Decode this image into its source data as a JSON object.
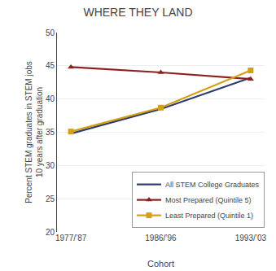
{
  "chart_data": {
    "type": "line",
    "title": "WHERE THEY LAND",
    "x_label": "Cohort",
    "y_label": "Percent STEM graduates in STEM jobs\n10 years after graduation",
    "categories": [
      "1977/’87",
      "1986/’96",
      "1993/’03"
    ],
    "series": [
      {
        "name": "All STEM College Graduates",
        "color": "#2e3d6b",
        "values": [
          34.8,
          38.5,
          43.2
        ]
      },
      {
        "name": "Most Prepared (Quintile 5)",
        "color": "#8b2020",
        "marker": "triangle-up",
        "values": [
          44.8,
          44.0,
          43.0
        ]
      },
      {
        "name": "Least Prepared (Quintile 1)",
        "color": "#d4a017",
        "marker": "square",
        "values": [
          35.1,
          38.7,
          44.3
        ]
      }
    ],
    "ylim": [
      20,
      50
    ],
    "yticks": [
      20,
      25,
      30,
      35,
      40,
      45,
      50
    ],
    "grid": true,
    "legend": "lower right"
  }
}
